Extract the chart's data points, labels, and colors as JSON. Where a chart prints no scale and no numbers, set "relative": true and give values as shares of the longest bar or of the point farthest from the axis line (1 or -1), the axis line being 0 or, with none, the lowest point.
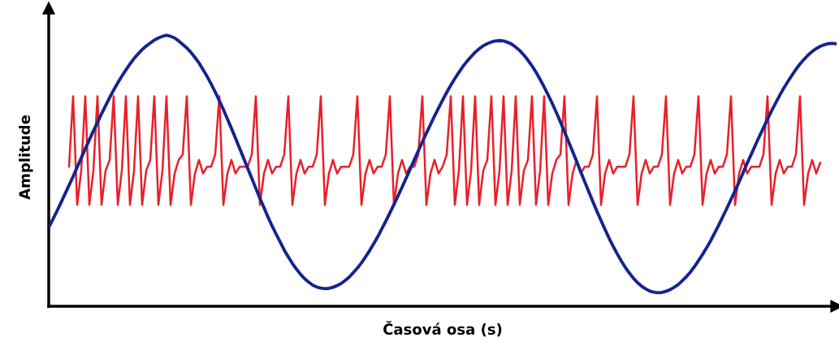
{
  "chart_data": {
    "type": "line",
    "xlabel": "Časová osa (s)",
    "ylabel": "Amplitude",
    "relative": true,
    "legend": false,
    "marker": "none",
    "line_style": "solid",
    "categories": [
      null,
      null,
      null,
      null,
      null,
      null,
      null,
      null,
      null,
      null,
      null,
      null,
      null,
      null,
      null,
      null,
      null,
      null,
      null,
      null,
      null,
      null,
      null,
      null,
      null,
      null,
      null,
      null,
      null,
      null,
      null,
      null,
      null,
      null,
      null,
      null,
      null,
      null,
      null,
      null,
      null,
      null,
      null,
      null,
      null,
      null,
      null,
      null,
      null,
      null,
      null,
      null,
      null,
      null,
      null,
      null,
      null,
      null,
      null,
      null,
      null,
      null,
      null,
      null,
      null,
      null,
      null,
      null,
      null,
      null,
      null,
      null,
      null,
      null,
      null,
      null,
      null,
      null,
      null,
      null,
      null,
      null,
      null,
      null,
      null,
      null,
      null,
      null,
      null,
      null,
      null,
      null,
      null,
      null,
      null,
      null,
      null,
      null,
      null,
      null,
      null,
      null,
      null,
      null,
      null,
      null,
      null,
      null,
      null,
      null,
      null,
      null,
      null,
      null,
      null,
      null,
      null,
      null,
      null,
      null,
      null,
      null,
      null,
      null,
      null,
      null,
      null,
      null,
      null,
      null,
      null,
      null,
      null,
      null,
      null,
      null,
      null,
      null,
      null,
      null,
      null,
      null,
      null,
      null,
      null,
      null,
      null,
      null,
      null,
      null,
      null,
      null,
      null,
      null,
      null,
      null,
      null,
      null,
      null,
      null,
      null,
      null,
      null,
      null,
      null,
      null,
      null,
      null,
      null,
      null,
      null,
      null,
      null,
      null,
      null,
      null,
      null,
      null,
      null,
      null,
      null,
      null,
      null,
      null,
      null,
      null,
      null,
      null,
      null,
      null,
      null,
      null,
      null,
      null,
      null
    ],
    "series": [
      {
        "color": "#e8202a",
        "values": [
          null,
          null,
          null,
          null,
          null,
          0.515,
          0.775,
          0.374,
          0.5,
          0.775,
          0.374,
          0.5,
          0.775,
          0.374,
          0.5,
          0.54,
          0.775,
          0.374,
          0.5,
          0.775,
          0.374,
          0.5,
          0.775,
          0.374,
          0.5,
          0.54,
          0.775,
          0.374,
          0.5,
          0.775,
          0.374,
          0.49,
          0.54,
          0.56,
          0.775,
          0.374,
          0.49,
          0.54,
          0.49,
          0.515,
          0.515,
          0.56,
          0.775,
          0.374,
          0.49,
          0.54,
          0.49,
          0.515,
          0.515,
          0.515,
          0.56,
          0.775,
          0.374,
          0.49,
          0.54,
          0.49,
          0.515,
          0.515,
          0.56,
          0.775,
          0.374,
          0.49,
          0.54,
          0.49,
          0.515,
          0.515,
          0.56,
          0.775,
          0.374,
          0.49,
          0.54,
          0.49,
          0.515,
          0.515,
          0.515,
          0.56,
          0.775,
          0.374,
          0.49,
          0.54,
          0.49,
          0.515,
          0.515,
          0.56,
          0.775,
          0.374,
          0.49,
          0.54,
          0.49,
          0.515,
          0.515,
          0.56,
          0.775,
          0.374,
          0.49,
          0.54,
          0.49,
          0.515,
          0.56,
          0.775,
          0.374,
          0.5,
          0.775,
          0.374,
          0.5,
          0.775,
          0.374,
          0.5,
          0.54,
          0.775,
          0.374,
          0.5,
          0.775,
          0.374,
          0.5,
          0.775,
          0.374,
          0.5,
          0.54,
          0.775,
          0.374,
          0.5,
          0.775,
          0.374,
          0.49,
          0.54,
          0.56,
          0.775,
          0.374,
          0.49,
          0.54,
          0.49,
          0.515,
          0.515,
          0.56,
          0.775,
          0.374,
          0.49,
          0.54,
          0.49,
          0.515,
          0.515,
          0.515,
          0.56,
          0.775,
          0.374,
          0.49,
          0.54,
          0.49,
          0.515,
          0.515,
          0.56,
          0.775,
          0.374,
          0.49,
          0.54,
          0.49,
          0.515,
          0.515,
          0.56,
          0.775,
          0.374,
          0.49,
          0.54,
          0.49,
          0.515,
          0.515,
          0.56,
          0.775,
          0.374,
          0.49,
          0.54,
          0.49,
          0.515,
          0.515,
          0.515,
          0.56,
          0.775,
          0.374,
          0.49,
          0.54,
          0.49,
          0.515,
          0.515,
          0.56,
          0.775,
          0.374,
          0.49,
          0.54,
          0.49,
          0.53,
          null,
          null,
          null,
          null
        ]
      },
      {
        "color": "#13248f",
        "values": [
          0.29,
          0.32,
          0.35,
          0.382,
          0.414,
          0.446,
          0.479,
          0.513,
          0.547,
          0.581,
          0.614,
          0.647,
          0.678,
          0.71,
          0.74,
          0.77,
          0.798,
          0.824,
          0.849,
          0.872,
          0.894,
          0.914,
          0.931,
          0.947,
          0.96,
          0.971,
          0.982,
          0.99,
          0.996,
          1.0,
          0.996,
          0.99,
          0.979,
          0.966,
          0.953,
          0.937,
          0.918,
          0.898,
          0.873,
          0.848,
          0.82,
          0.79,
          0.759,
          0.726,
          0.691,
          0.656,
          0.62,
          0.583,
          0.546,
          0.509,
          0.472,
          0.435,
          0.399,
          0.364,
          0.329,
          0.296,
          0.266,
          0.237,
          0.207,
          0.182,
          0.158,
          0.137,
          0.118,
          0.102,
          0.089,
          0.078,
          0.071,
          0.067,
          0.065,
          0.066,
          0.07,
          0.076,
          0.084,
          0.095,
          0.108,
          0.124,
          0.141,
          0.16,
          0.182,
          0.205,
          0.23,
          0.256,
          0.285,
          0.314,
          0.344,
          0.375,
          0.407,
          0.439,
          0.472,
          0.506,
          0.54,
          0.573,
          0.606,
          0.639,
          0.67,
          0.702,
          0.732,
          0.761,
          0.789,
          0.815,
          0.84,
          0.863,
          0.885,
          0.904,
          0.921,
          0.937,
          0.95,
          0.961,
          0.969,
          0.975,
          0.979,
          0.98,
          0.979,
          0.974,
          0.967,
          0.956,
          0.943,
          0.927,
          0.908,
          0.887,
          0.863,
          0.837,
          0.809,
          0.779,
          0.748,
          0.715,
          0.68,
          0.644,
          0.608,
          0.571,
          0.534,
          0.496,
          0.459,
          0.422,
          0.386,
          0.35,
          0.316,
          0.283,
          0.251,
          0.221,
          0.193,
          0.167,
          0.143,
          0.122,
          0.103,
          0.087,
          0.074,
          0.064,
          0.056,
          0.052,
          0.05,
          0.051,
          0.055,
          0.061,
          0.07,
          0.08,
          0.094,
          0.109,
          0.126,
          0.146,
          0.168,
          0.191,
          0.216,
          0.242,
          0.271,
          0.3,
          0.331,
          0.362,
          0.394,
          0.426,
          0.459,
          0.493,
          0.528,
          0.561,
          0.594,
          0.627,
          0.658,
          0.69,
          0.721,
          0.75,
          0.778,
          0.805,
          0.829,
          0.852,
          0.874,
          0.894,
          0.911,
          0.927,
          0.94,
          0.951,
          0.959,
          0.965,
          0.969,
          0.97,
          0.968
        ]
      }
    ]
  }
}
